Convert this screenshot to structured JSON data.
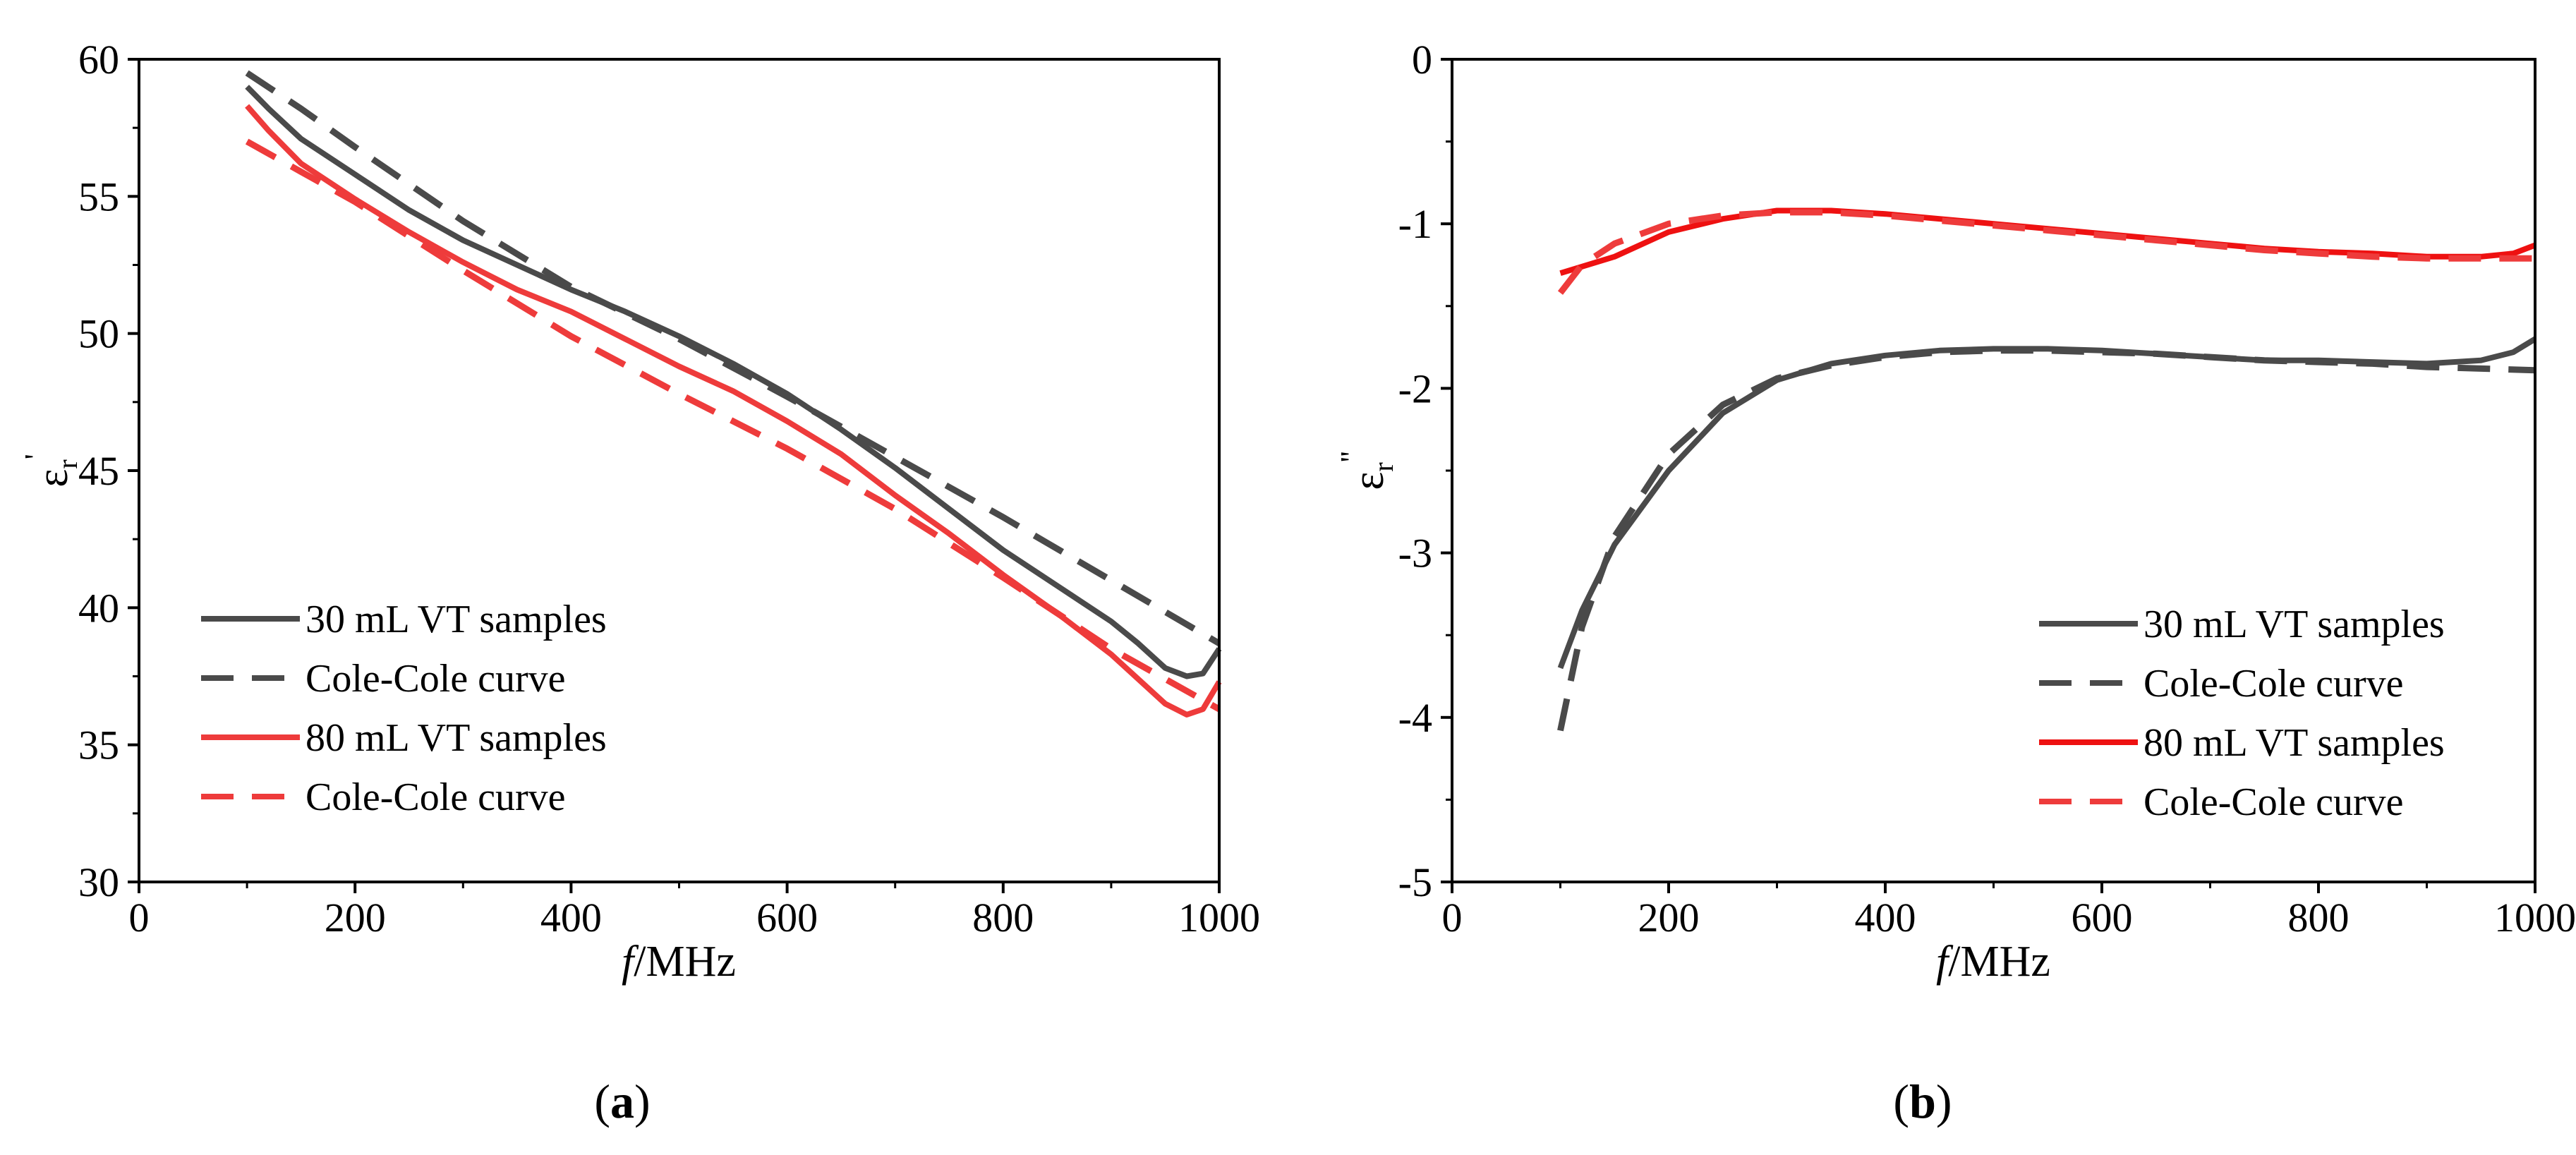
{
  "chart_data": [
    {
      "panel": "a",
      "type": "line",
      "caption": "a",
      "xlabel_italic": "f",
      "xlabel_rest": "/MHz",
      "ylabel_base": "ε",
      "ylabel_sub": "r",
      "ylabel_prime": "'",
      "xlim": [
        0,
        1000
      ],
      "ylim": [
        30,
        60
      ],
      "xticks": [
        0,
        200,
        400,
        600,
        800,
        1000
      ],
      "yticks": [
        30,
        35,
        40,
        45,
        50,
        55,
        60
      ],
      "legend_position": "bottom-left",
      "series": [
        {
          "name": "30 mL VT samples",
          "color": "#4a4a4a",
          "style": "solid",
          "x": [
            100,
            120,
            150,
            200,
            250,
            300,
            350,
            400,
            450,
            500,
            550,
            600,
            650,
            700,
            750,
            800,
            850,
            900,
            925,
            950,
            970,
            985,
            1000
          ],
          "y": [
            59.0,
            58.2,
            57.1,
            55.8,
            54.5,
            53.4,
            52.5,
            51.6,
            50.8,
            49.9,
            48.9,
            47.8,
            46.5,
            45.1,
            43.6,
            42.1,
            40.8,
            39.5,
            38.7,
            37.8,
            37.5,
            37.6,
            38.5
          ]
        },
        {
          "name": "Cole-Cole curve",
          "color": "#4a4a4a",
          "style": "dashed",
          "x": [
            100,
            150,
            200,
            300,
            400,
            500,
            600,
            700,
            800,
            900,
            1000
          ],
          "y": [
            59.5,
            58.2,
            56.8,
            54.1,
            51.7,
            49.8,
            47.7,
            45.5,
            43.3,
            41.0,
            38.7
          ]
        },
        {
          "name": "80 mL VT samples",
          "color": "#ee3b3b",
          "style": "solid",
          "x": [
            100,
            120,
            150,
            200,
            250,
            300,
            350,
            400,
            450,
            500,
            550,
            600,
            650,
            700,
            750,
            800,
            850,
            900,
            925,
            950,
            970,
            985,
            1000
          ],
          "y": [
            58.3,
            57.4,
            56.2,
            54.9,
            53.7,
            52.6,
            51.6,
            50.8,
            49.8,
            48.8,
            47.9,
            46.8,
            45.6,
            44.1,
            42.7,
            41.2,
            39.8,
            38.3,
            37.4,
            36.5,
            36.1,
            36.3,
            37.3
          ]
        },
        {
          "name": "Cole-Cole curve",
          "color": "#ee3b3b",
          "style": "dashed",
          "x": [
            100,
            150,
            200,
            300,
            400,
            500,
            600,
            700,
            800,
            900,
            1000
          ],
          "y": [
            57.0,
            55.9,
            54.8,
            52.3,
            49.9,
            47.8,
            45.8,
            43.6,
            41.1,
            38.5,
            36.3
          ]
        }
      ]
    },
    {
      "panel": "b",
      "type": "line",
      "caption": "b",
      "xlabel_italic": "f",
      "xlabel_rest": "/MHz",
      "ylabel_base": "ε",
      "ylabel_sub": "r",
      "ylabel_prime": "''",
      "xlim": [
        0,
        1000
      ],
      "ylim": [
        -5,
        0
      ],
      "xticks": [
        0,
        200,
        400,
        600,
        800,
        1000
      ],
      "yticks": [
        -5,
        -4,
        -3,
        -2,
        -1,
        0
      ],
      "legend_position": "bottom-right",
      "series": [
        {
          "name": "30 mL VT samples",
          "color": "#4a4a4a",
          "style": "solid",
          "x": [
            100,
            120,
            150,
            200,
            250,
            300,
            350,
            400,
            450,
            500,
            550,
            600,
            650,
            700,
            750,
            800,
            850,
            900,
            950,
            980,
            1000
          ],
          "y": [
            -3.7,
            -3.35,
            -2.95,
            -2.5,
            -2.15,
            -1.95,
            -1.85,
            -1.8,
            -1.77,
            -1.76,
            -1.76,
            -1.77,
            -1.79,
            -1.81,
            -1.83,
            -1.83,
            -1.84,
            -1.85,
            -1.83,
            -1.78,
            -1.7
          ]
        },
        {
          "name": "Cole-Cole curve",
          "color": "#4a4a4a",
          "style": "dashed",
          "x": [
            100,
            120,
            150,
            200,
            250,
            300,
            350,
            400,
            450,
            500,
            550,
            600,
            650,
            700,
            750,
            800,
            850,
            900,
            950,
            1000
          ],
          "y": [
            -4.08,
            -3.45,
            -2.9,
            -2.4,
            -2.1,
            -1.94,
            -1.86,
            -1.81,
            -1.78,
            -1.77,
            -1.77,
            -1.78,
            -1.79,
            -1.81,
            -1.83,
            -1.84,
            -1.85,
            -1.87,
            -1.88,
            -1.89
          ]
        },
        {
          "name": "80 mL VT samples",
          "color": "#ee1111",
          "style": "solid",
          "x": [
            100,
            150,
            200,
            250,
            300,
            350,
            400,
            450,
            500,
            550,
            600,
            650,
            700,
            750,
            800,
            850,
            900,
            950,
            980,
            1000
          ],
          "y": [
            -1.3,
            -1.2,
            -1.05,
            -0.97,
            -0.92,
            -0.92,
            -0.94,
            -0.97,
            -1.0,
            -1.03,
            -1.06,
            -1.09,
            -1.12,
            -1.15,
            -1.17,
            -1.18,
            -1.2,
            -1.2,
            -1.18,
            -1.13
          ]
        },
        {
          "name": "Cole-Cole curve",
          "color": "#ee3b3b",
          "style": "dashed",
          "x": [
            100,
            120,
            150,
            200,
            250,
            300,
            350,
            400,
            450,
            500,
            550,
            600,
            650,
            700,
            750,
            800,
            850,
            900,
            950,
            1000
          ],
          "y": [
            -1.42,
            -1.25,
            -1.12,
            -1.0,
            -0.95,
            -0.93,
            -0.93,
            -0.95,
            -0.98,
            -1.01,
            -1.04,
            -1.07,
            -1.1,
            -1.13,
            -1.16,
            -1.18,
            -1.2,
            -1.21,
            -1.21,
            -1.21
          ]
        }
      ]
    }
  ]
}
